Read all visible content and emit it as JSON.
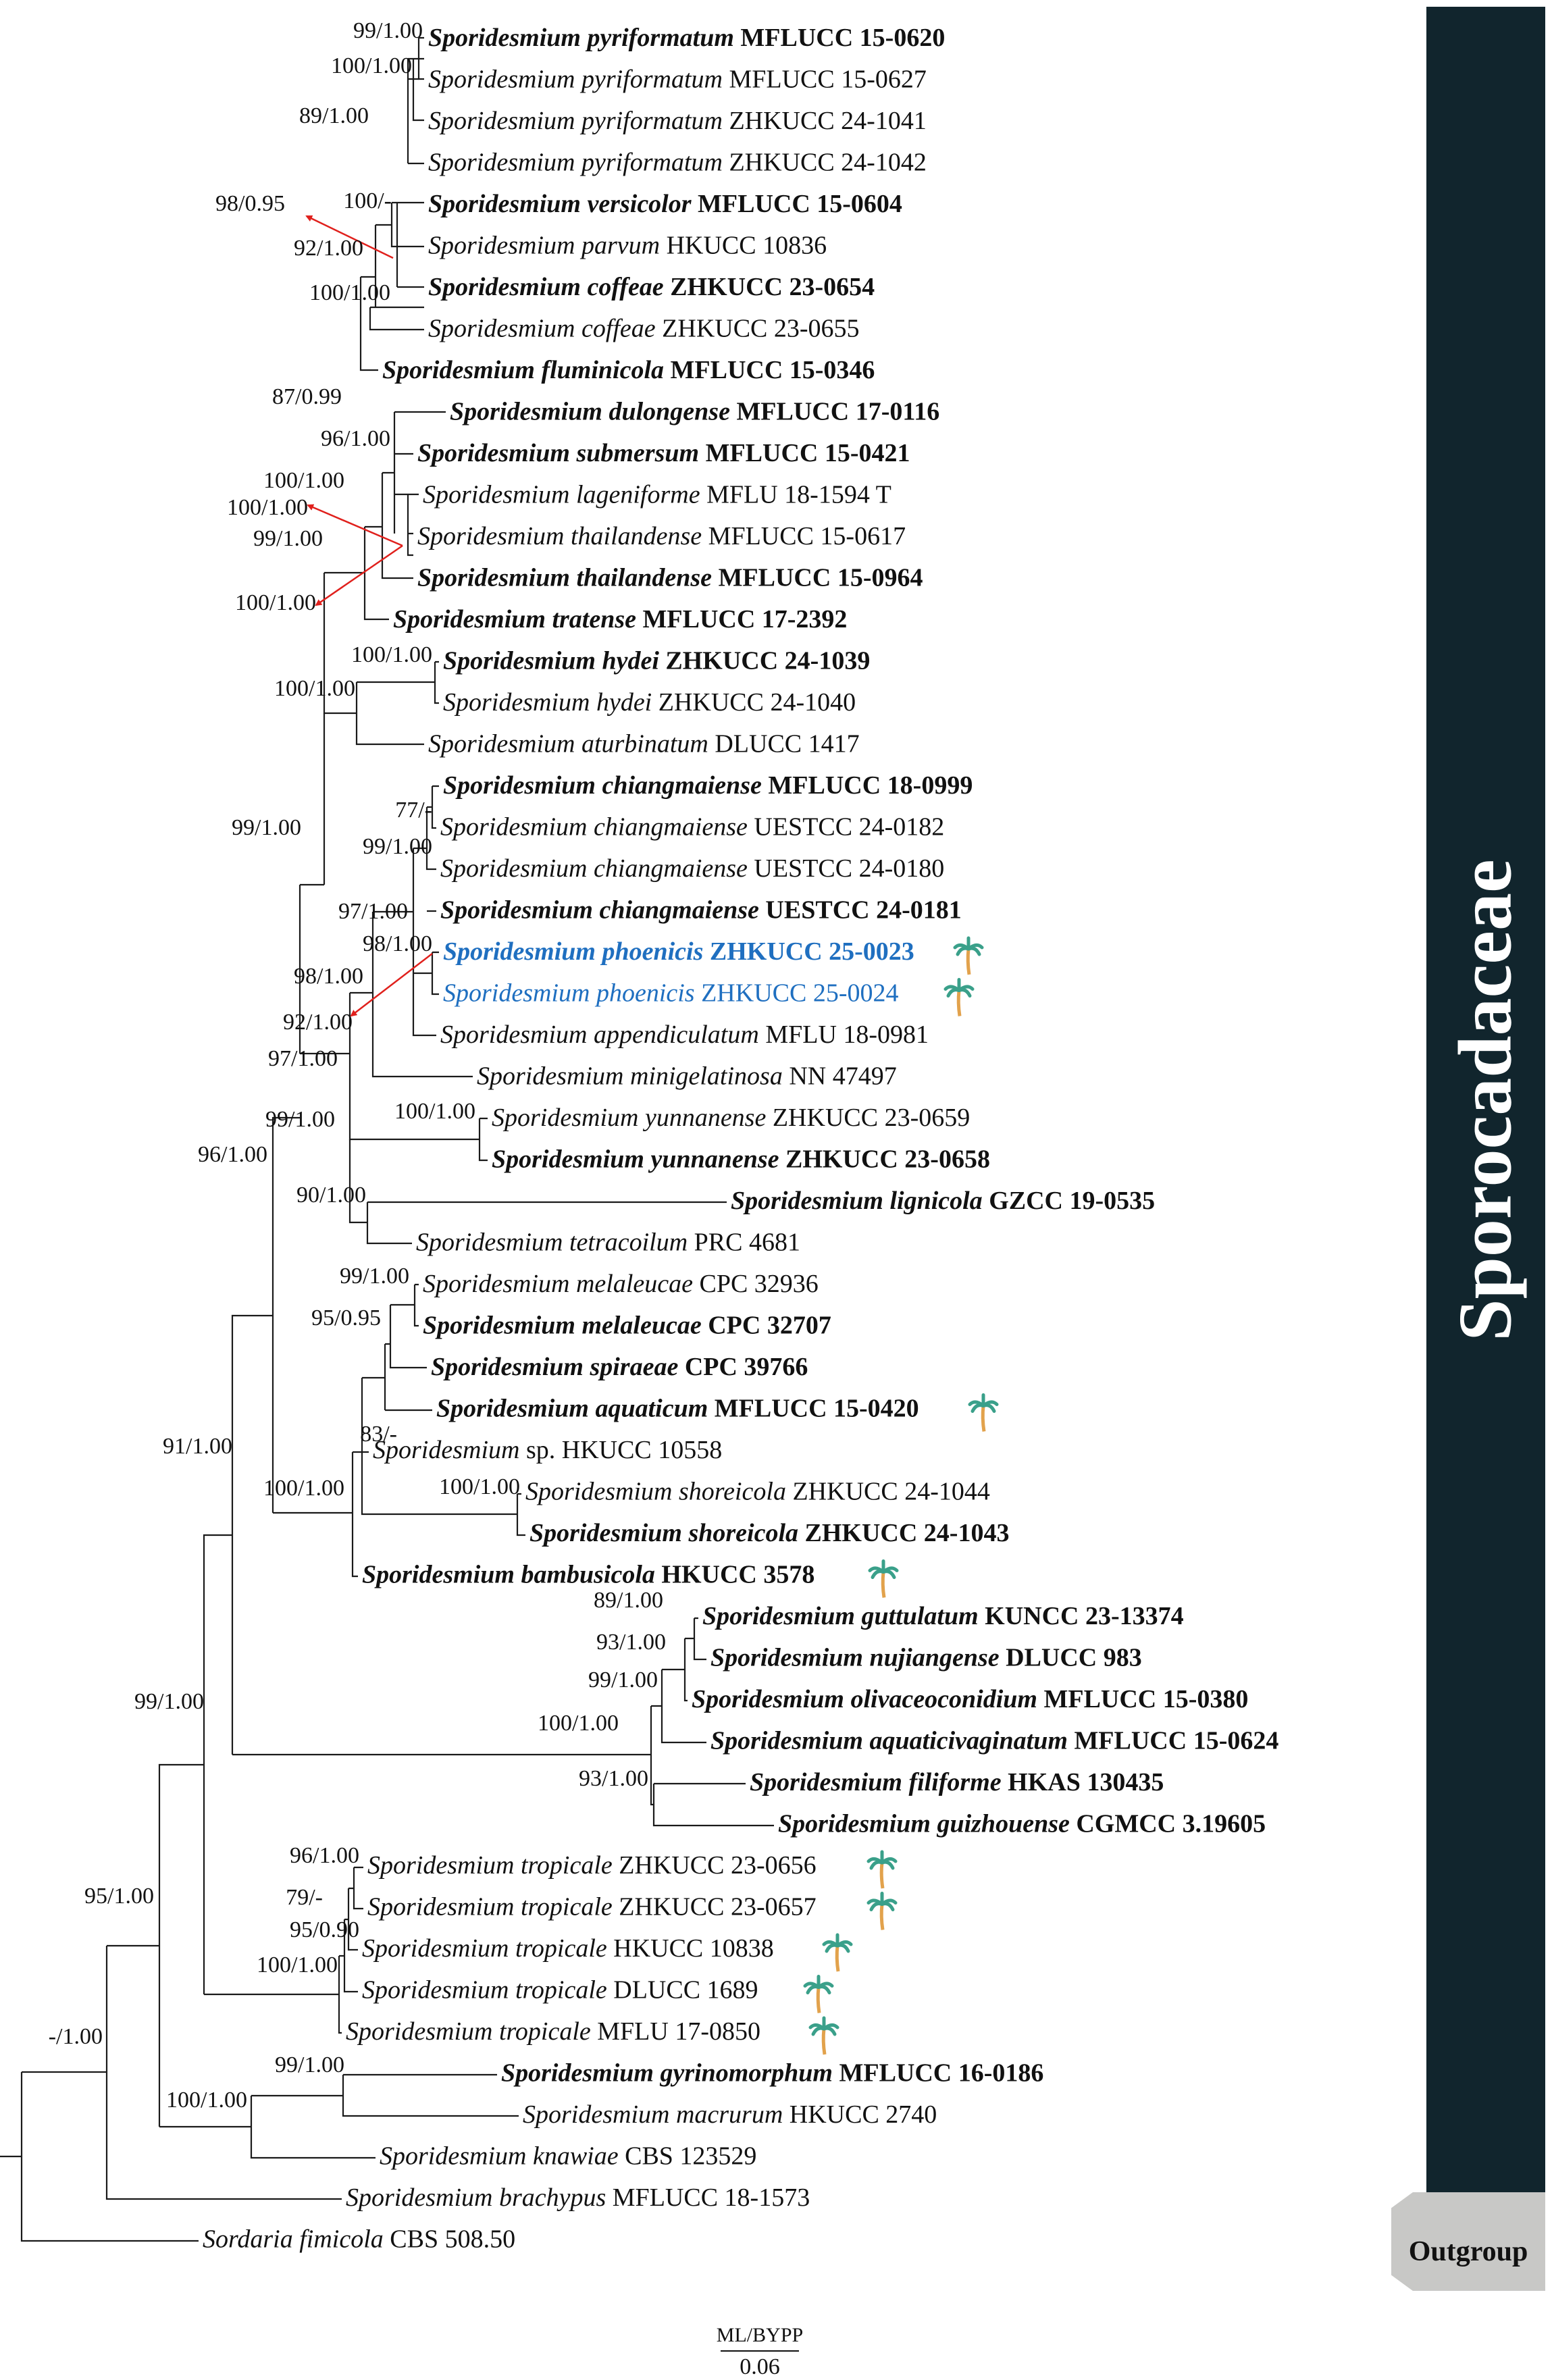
{
  "clade": "Sporocadaceae",
  "outgroup": "Outgroup",
  "scale": {
    "title": "ML/BYPP",
    "value": "0.06"
  },
  "colors": {
    "highlight": "#1f6fc0",
    "clade_bar": "#11252d",
    "outgroup_tab": "#c8c8c6",
    "arrow": "#e0201c",
    "palm": "#3aa08a"
  },
  "taxa": [
    {
      "genus": "Sporidesmium",
      "epithet": "pyriformatum",
      "strain": "MFLUCC 15-0620",
      "bold": true
    },
    {
      "genus": "Sporidesmium",
      "epithet": "pyriformatum",
      "strain": "MFLUCC 15-0627"
    },
    {
      "genus": "Sporidesmium",
      "epithet": "pyriformatum",
      "strain": "ZHKUCC 24-1041"
    },
    {
      "genus": "Sporidesmium",
      "epithet": "pyriformatum",
      "strain": "ZHKUCC 24-1042"
    },
    {
      "genus": "Sporidesmium",
      "epithet": "versicolor",
      "strain": "MFLUCC 15-0604",
      "bold": true
    },
    {
      "genus": "Sporidesmium",
      "epithet": "parvum",
      "strain": "HKUCC 10836"
    },
    {
      "genus": "Sporidesmium",
      "epithet": "coffeae",
      "strain": "ZHKUCC 23-0654",
      "bold": true
    },
    {
      "genus": "Sporidesmium",
      "epithet": "coffeae",
      "strain": "ZHKUCC 23-0655"
    },
    {
      "genus": "Sporidesmium",
      "epithet": "fluminicola",
      "strain": "MFLUCC 15-0346",
      "bold": true
    },
    {
      "genus": "Sporidesmium",
      "epithet": "dulongense",
      "strain": "MFLUCC 17-0116",
      "bold": true
    },
    {
      "genus": "Sporidesmium",
      "epithet": "submersum",
      "strain": "MFLUCC 15-0421",
      "bold": true
    },
    {
      "genus": "Sporidesmium",
      "epithet": "lageniforme",
      "strain": "MFLU 18-1594 T"
    },
    {
      "genus": "Sporidesmium",
      "epithet": "thailandense",
      "strain": "MFLUCC 15-0617"
    },
    {
      "genus": "Sporidesmium",
      "epithet": "thailandense",
      "strain": "MFLUCC 15-0964",
      "bold": true
    },
    {
      "genus": "Sporidesmium",
      "epithet": "tratense",
      "strain": "MFLUCC 17-2392",
      "bold": true
    },
    {
      "genus": "Sporidesmium",
      "epithet": "hydei",
      "strain": "ZHKUCC 24-1039",
      "bold": true
    },
    {
      "genus": "Sporidesmium",
      "epithet": "hydei",
      "strain": "ZHKUCC 24-1040"
    },
    {
      "genus": "Sporidesmium",
      "epithet": "aturbinatum",
      "strain": "DLUCC 1417"
    },
    {
      "genus": "Sporidesmium",
      "epithet": "chiangmaiense",
      "strain": "MFLUCC 18-0999",
      "bold": true
    },
    {
      "genus": "Sporidesmium",
      "epithet": "chiangmaiense",
      "strain": "UESTCC 24-0182"
    },
    {
      "genus": "Sporidesmium",
      "epithet": "chiangmaiense",
      "strain": "UESTCC 24-0180"
    },
    {
      "genus": "Sporidesmium",
      "epithet": "chiangmaiense",
      "strain": "UESTCC 24-0181",
      "bold": true
    },
    {
      "genus": "Sporidesmium",
      "epithet": "phoenicis",
      "strain": "ZHKUCC 25-0023",
      "bold": true,
      "highlight": true,
      "palm": true
    },
    {
      "genus": "Sporidesmium",
      "epithet": "phoenicis",
      "strain": "ZHKUCC 25-0024",
      "highlight": true,
      "palm": true
    },
    {
      "genus": "Sporidesmium",
      "epithet": "appendiculatum",
      "strain": "MFLU 18-0981"
    },
    {
      "genus": "Sporidesmium",
      "epithet": "minigelatinosa",
      "strain": "NN 47497"
    },
    {
      "genus": "Sporidesmium",
      "epithet": "yunnanense",
      "strain": "ZHKUCC 23-0659"
    },
    {
      "genus": "Sporidesmium",
      "epithet": "yunnanense",
      "strain": "ZHKUCC 23-0658",
      "bold": true
    },
    {
      "genus": "Sporidesmium",
      "epithet": "lignicola",
      "strain": "GZCC 19-0535",
      "bold": true
    },
    {
      "genus": "Sporidesmium",
      "epithet": "tetracoilum",
      "strain": "PRC 4681"
    },
    {
      "genus": "Sporidesmium",
      "epithet": "melaleucae",
      "strain": "CPC 32936"
    },
    {
      "genus": "Sporidesmium",
      "epithet": "melaleucae",
      "strain": "CPC 32707",
      "bold": true
    },
    {
      "genus": "Sporidesmium",
      "epithet": "spiraeae",
      "strain": "CPC 39766",
      "bold": true
    },
    {
      "genus": "Sporidesmium",
      "epithet": "aquaticum",
      "strain": "MFLUCC 15-0420",
      "bold": true,
      "palm": true
    },
    {
      "genus": "Sporidesmium",
      "epithet": "sp.",
      "strain": "HKUCC 10558",
      "epithet_roman": true
    },
    {
      "genus": "Sporidesmium",
      "epithet": "shoreicola",
      "strain": "ZHKUCC 24-1044"
    },
    {
      "genus": "Sporidesmium",
      "epithet": "shoreicola",
      "strain": "ZHKUCC 24-1043",
      "bold": true
    },
    {
      "genus": "Sporidesmium",
      "epithet": "bambusicola",
      "strain": "HKUCC 3578",
      "bold": true,
      "palm": true
    },
    {
      "genus": "Sporidesmium",
      "epithet": "guttulatum",
      "strain": "KUNCC 23-13374",
      "bold": true
    },
    {
      "genus": "Sporidesmium",
      "epithet": "nujiangense",
      "strain": "DLUCC 983",
      "bold": true
    },
    {
      "genus": "Sporidesmium",
      "epithet": "olivaceoconidium",
      "strain": "MFLUCC 15-0380",
      "bold": true
    },
    {
      "genus": "Sporidesmium",
      "epithet": "aquaticivaginatum",
      "strain": "MFLUCC 15-0624",
      "bold": true
    },
    {
      "genus": "Sporidesmium",
      "epithet": "filiforme",
      "strain": "HKAS 130435",
      "bold": true
    },
    {
      "genus": "Sporidesmium",
      "epithet": "guizhouense",
      "strain": "CGMCC 3.19605",
      "bold": true
    },
    {
      "genus": "Sporidesmium",
      "epithet": "tropicale",
      "strain": "ZHKUCC 23-0656",
      "palm": true
    },
    {
      "genus": "Sporidesmium",
      "epithet": "tropicale",
      "strain": "ZHKUCC 23-0657",
      "palm": true
    },
    {
      "genus": "Sporidesmium",
      "epithet": "tropicale",
      "strain": "HKUCC 10838",
      "palm": true
    },
    {
      "genus": "Sporidesmium",
      "epithet": "tropicale",
      "strain": "DLUCC 1689",
      "palm": true
    },
    {
      "genus": "Sporidesmium",
      "epithet": "tropicale",
      "strain": "MFLU 17-0850",
      "palm": true
    },
    {
      "genus": "Sporidesmium",
      "epithet": "gyrinomorphum",
      "strain": "MFLUCC 16-0186",
      "bold": true
    },
    {
      "genus": "Sporidesmium",
      "epithet": "macrurum",
      "strain": "HKUCC 2740"
    },
    {
      "genus": "Sporidesmium",
      "epithet": "knawiae",
      "strain": "CBS 123529"
    },
    {
      "genus": "Sporidesmium",
      "epithet": "brachypus",
      "strain": "MFLUCC 18-1573"
    },
    {
      "genus": "Sordaria",
      "epithet": "fimicola",
      "strain": "CBS 508.50"
    }
  ],
  "support_values": [
    "99/1.00",
    "100/1.00",
    "89/1.00",
    "98/0.95",
    "100/-",
    "92/1.00",
    "100/1.00",
    "87/0.99",
    "96/1.00",
    "100/1.00",
    "100/1.00",
    "99/1.00",
    "100/1.00",
    "100/1.00",
    "100/1.00",
    "99/1.00",
    "77/-",
    "99/1.00",
    "97/1.00",
    "98/1.00",
    "98/1.00",
    "92/1.00",
    "97/1.00",
    "99/1.00",
    "100/1.00",
    "96/1.00",
    "90/1.00",
    "99/1.00",
    "95/0.95",
    "83/-",
    "91/1.00",
    "100/1.00",
    "100/1.00",
    "89/1.00",
    "93/1.00",
    "99/1.00",
    "100/1.00",
    "93/1.00",
    "99/1.00",
    "96/1.00",
    "79/-",
    "95/0.90",
    "95/1.00",
    "100/1.00",
    "99/1.00",
    "100/1.00",
    "-/1.00"
  ]
}
